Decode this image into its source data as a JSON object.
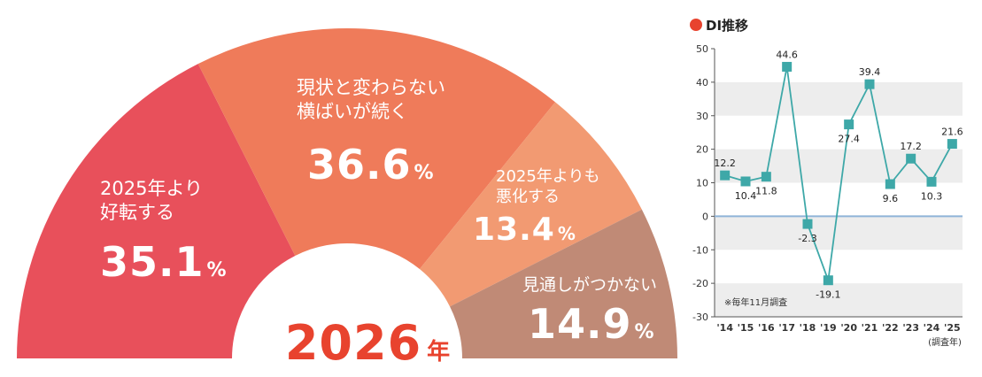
{
  "chart_data": [
    {
      "type": "pie",
      "title": "2026年",
      "title_year": "2026",
      "title_unit": "年",
      "slices": [
        {
          "label_lines": [
            "2025年より",
            "好転する"
          ],
          "value": 35.1,
          "value_text": "35.1",
          "unit": "%",
          "color": "#e8505b"
        },
        {
          "label_lines": [
            "現状と変わらない",
            "横ばいが続く"
          ],
          "value": 36.6,
          "value_text": "36.6",
          "unit": "%",
          "color": "#ef7b5a"
        },
        {
          "label_lines": [
            "2025年よりも",
            "悪化する"
          ],
          "value": 13.4,
          "value_text": "13.4",
          "unit": "%",
          "color": "#f29a72"
        },
        {
          "label_lines": [
            "見通しがつかない"
          ],
          "value": 14.9,
          "value_text": "14.9",
          "unit": "%",
          "color": "#c08a76"
        }
      ]
    },
    {
      "type": "line",
      "title": "DI推移",
      "marker_color": "#e8432e",
      "line_color": "#3ea8a8",
      "zero_line_color": "#8fb4d8",
      "band_color": "#ededed",
      "x": [
        "'14",
        "'15",
        "'16",
        "'17",
        "'18",
        "'19",
        "'20",
        "'21",
        "'22",
        "'23",
        "'24",
        "'25"
      ],
      "values": [
        12.2,
        10.4,
        11.8,
        44.6,
        -2.3,
        -19.1,
        27.4,
        39.4,
        9.6,
        17.2,
        10.3,
        21.6
      ],
      "value_labels": [
        "12.2",
        "10.4",
        "11.8",
        "44.6",
        "-2.3",
        "-19.1",
        "27.4",
        "39.4",
        "9.6",
        "17.2",
        "10.3",
        "21.6"
      ],
      "yticks": [
        50,
        40,
        30,
        20,
        10,
        0,
        -10,
        -20,
        -30
      ],
      "ylim": [
        -30,
        50
      ],
      "xlabel": "(調査年)",
      "note": "※毎年11月調査"
    }
  ]
}
